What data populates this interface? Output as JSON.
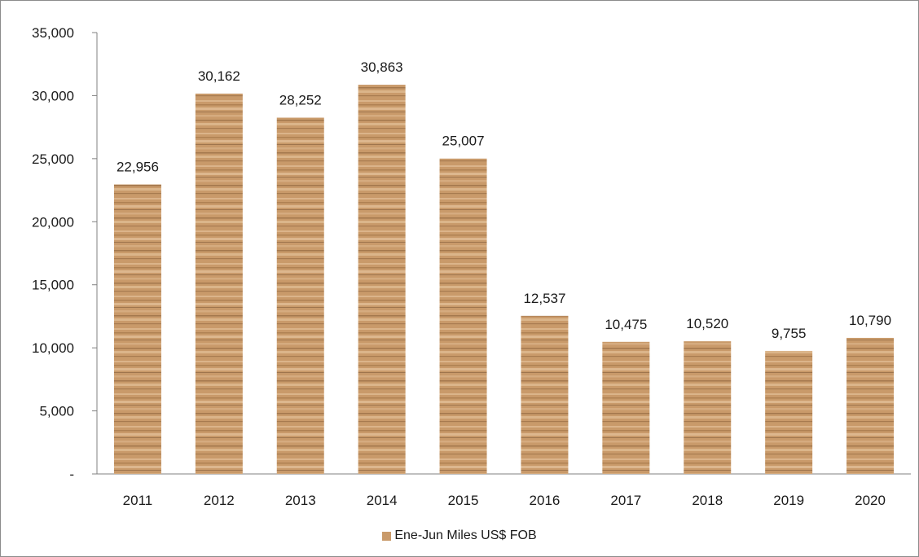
{
  "chart_data": {
    "type": "bar",
    "title": "",
    "xlabel": "",
    "ylabel": "",
    "categories": [
      "2011",
      "2012",
      "2013",
      "2014",
      "2015",
      "2016",
      "2017",
      "2018",
      "2019",
      "2020"
    ],
    "series": [
      {
        "name": "Ene-Jun Miles US$ FOB",
        "values": [
          22956,
          30162,
          28252,
          30863,
          25007,
          12537,
          10475,
          10520,
          9755,
          10790
        ],
        "labels": [
          "22,956",
          "30,162",
          "28,252",
          "30,863",
          "25,007",
          "12,537",
          "10,475",
          "10,520",
          "9,755",
          "10,790"
        ]
      }
    ],
    "ylim": [
      0,
      35000
    ],
    "yticks": [
      0,
      5000,
      10000,
      15000,
      20000,
      25000,
      30000,
      35000
    ],
    "ytick_labels": [
      "-",
      "5,000",
      "10,000",
      "15,000",
      "20,000",
      "25,000",
      "30,000",
      "35,000"
    ],
    "grid": false,
    "legend_position": "bottom",
    "colors": {
      "bar_base": "#c99a6a",
      "bar_light": "#ddb78e",
      "bar_dark": "#a97a4e",
      "axis": "#808080"
    }
  }
}
